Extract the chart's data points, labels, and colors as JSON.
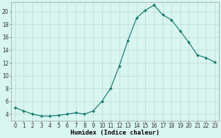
{
  "x": [
    0,
    1,
    2,
    3,
    4,
    5,
    6,
    7,
    8,
    9,
    10,
    11,
    12,
    13,
    14,
    15,
    16,
    17,
    18,
    19,
    20,
    21,
    22,
    23
  ],
  "y": [
    5.0,
    4.5,
    4.0,
    3.7,
    3.7,
    3.8,
    4.0,
    4.2,
    4.0,
    4.5,
    6.0,
    8.0,
    11.5,
    15.5,
    19.0,
    20.2,
    21.0,
    19.5,
    18.7,
    17.0,
    15.2,
    13.2,
    12.8,
    12.1
  ],
  "line_color": "#1a7a6e",
  "marker": "D",
  "marker_size": 2.0,
  "bg_color": "#d8f5f0",
  "grid_color": "#c0ddd8",
  "xlabel": "Humidex (Indice chaleur)",
  "xlim": [
    -0.5,
    23.5
  ],
  "ylim": [
    3,
    21.5
  ],
  "yticks": [
    4,
    6,
    8,
    10,
    12,
    14,
    16,
    18,
    20
  ],
  "xticks": [
    0,
    1,
    2,
    3,
    4,
    5,
    6,
    7,
    8,
    9,
    10,
    11,
    12,
    13,
    14,
    15,
    16,
    17,
    18,
    19,
    20,
    21,
    22,
    23
  ],
  "tick_fontsize": 5.5,
  "label_fontsize": 6.5
}
